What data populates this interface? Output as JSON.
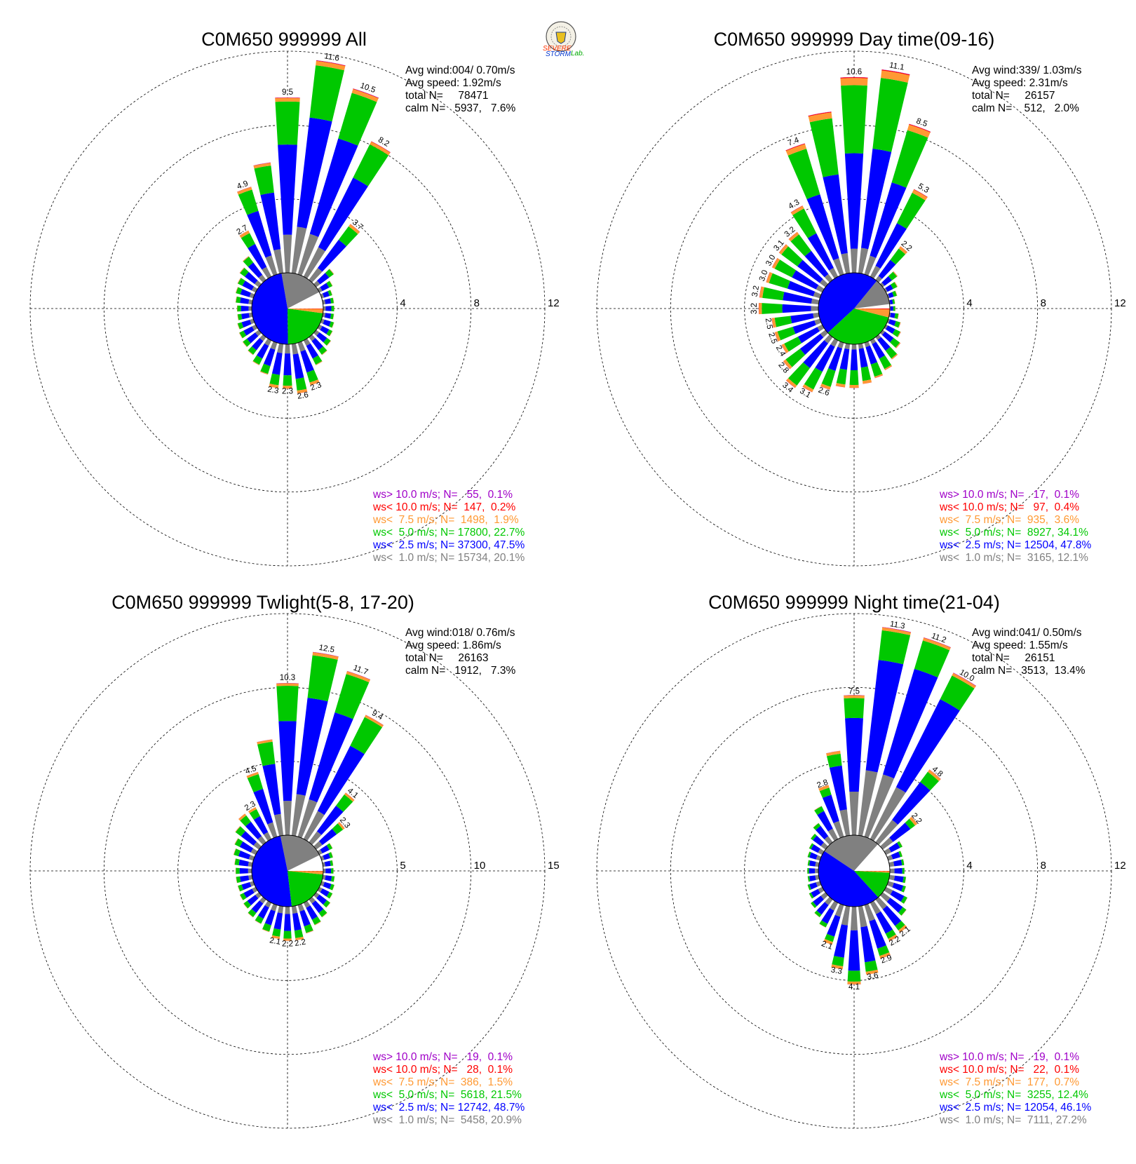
{
  "logo": {
    "word1": "SEVERE",
    "word2": "STORM",
    "word3": "Lab."
  },
  "colors": {
    "ws_gt_10": "#a000c8",
    "ws_lt_10": "#ff0000",
    "ws_lt_7_5": "#ff9933",
    "ws_lt_5": "#00c800",
    "ws_lt_2_5": "#0000ff",
    "ws_lt_1": "#808080",
    "calm": "#ffffff"
  },
  "chart_data": [
    {
      "type": "wind-rose",
      "title": "C0M650 999999 All",
      "stats": {
        "avg_wind": "Avg wind:004/ 0.70m/s",
        "avg_speed": "Avg speed: 1.92m/s",
        "total": "total N=     78471",
        "calm": "calm N=   5937,   7.6%"
      },
      "rings": [
        4,
        8,
        12
      ],
      "ring_labels": [
        "4",
        "8",
        "12"
      ],
      "pie_fractions": {
        "calm": 0.076,
        "ws_lt_1": 0.201,
        "ws_lt_2_5": 0.475,
        "ws_lt_5": 0.227,
        "ws_lt_7_5": 0.019,
        "ws_lt_10": 0.002
      },
      "directions_deg": [
        0,
        10,
        20,
        30,
        40,
        50,
        60,
        70,
        80,
        90,
        100,
        110,
        120,
        130,
        140,
        150,
        160,
        170,
        180,
        190,
        200,
        210,
        220,
        230,
        240,
        250,
        260,
        270,
        280,
        290,
        300,
        310,
        320,
        330,
        340,
        350
      ],
      "totals": [
        9.5,
        11.6,
        10.5,
        8.2,
        3.7,
        1.2,
        0.8,
        0.6,
        0.6,
        0.6,
        0.6,
        0.7,
        0.8,
        1.0,
        1.2,
        1.5,
        2.3,
        2.6,
        2.3,
        2.3,
        1.8,
        1.5,
        1.2,
        1.1,
        1.0,
        0.9,
        0.8,
        0.8,
        0.9,
        1.0,
        1.1,
        1.3,
        1.6,
        2.7,
        4.9,
        6.0
      ],
      "bar_labels": {
        "0": "9.5",
        "10": "11.6",
        "20": "10.5",
        "30": "8.2",
        "40": "3.7",
        "160": "2.3",
        "170": "2.6",
        "180": "2.3",
        "190": "2.3",
        "330": "2.7",
        "340": "4.9"
      },
      "legend": [
        {
          "key": "ws_gt_10",
          "text": "ws> 10.0 m/s; N=   55,  0.1%"
        },
        {
          "key": "ws_lt_10",
          "text": "ws< 10.0 m/s; N=  147,  0.2%"
        },
        {
          "key": "ws_lt_7_5",
          "text": "ws<  7.5 m/s; N=  1498,  1.9%"
        },
        {
          "key": "ws_lt_5",
          "text": "ws<  5.0 m/s; N= 17800, 22.7%"
        },
        {
          "key": "ws_lt_2_5",
          "text": "ws<  2.5 m/s; N= 37300, 47.5%"
        },
        {
          "key": "ws_lt_1",
          "text": "ws<  1.0 m/s; N= 15734, 20.1%"
        }
      ]
    },
    {
      "type": "wind-rose",
      "title": "C0M650 999999 Day time(09-16)",
      "stats": {
        "avg_wind": "Avg wind:339/ 1.03m/s",
        "avg_speed": "Avg speed: 2.31m/s",
        "total": "total N=     26157",
        "calm": "calm N=    512,   2.0%"
      },
      "rings": [
        4,
        8,
        12
      ],
      "ring_labels": [
        "4",
        "8",
        "12"
      ],
      "pie_fractions": {
        "calm": 0.02,
        "ws_lt_1": 0.121,
        "ws_lt_2_5": 0.478,
        "ws_lt_5": 0.341,
        "ws_lt_7_5": 0.036,
        "ws_lt_10": 0.004
      },
      "directions_deg": [
        0,
        10,
        20,
        30,
        40,
        50,
        60,
        70,
        80,
        90,
        100,
        110,
        120,
        130,
        140,
        150,
        160,
        170,
        180,
        190,
        200,
        210,
        220,
        230,
        240,
        250,
        260,
        270,
        280,
        290,
        300,
        310,
        320,
        330,
        340,
        350
      ],
      "totals": [
        10.6,
        11.1,
        8.5,
        5.3,
        2.2,
        1.0,
        0.7,
        0.5,
        0.3,
        0.3,
        0.5,
        0.7,
        0.9,
        1.2,
        1.5,
        1.8,
        2.0,
        2.1,
        2.3,
        2.3,
        2.6,
        3.1,
        3.4,
        2.8,
        2.4,
        2.5,
        2.5,
        3.2,
        3.2,
        3.0,
        3.0,
        3.1,
        3.2,
        4.3,
        7.4,
        8.8
      ],
      "bar_labels": {
        "0": "10.6",
        "10": "11.1",
        "20": "8.5",
        "30": "5.3",
        "40": "2.2",
        "200": "2.6",
        "210": "3.1",
        "220": "3.4",
        "230": "2.8",
        "240": "2.4",
        "250": "2.5",
        "260": "2.5",
        "270": "3.2",
        "280": "3.2",
        "290": "3.0",
        "300": "3.0",
        "310": "3.1",
        "320": "3.2",
        "330": "4.3",
        "340": "7.4"
      },
      "legend": [
        {
          "key": "ws_gt_10",
          "text": "ws> 10.0 m/s; N=   17,  0.1%"
        },
        {
          "key": "ws_lt_10",
          "text": "ws< 10.0 m/s; N=   97,  0.4%"
        },
        {
          "key": "ws_lt_7_5",
          "text": "ws<  7.5 m/s; N=  935,  3.6%"
        },
        {
          "key": "ws_lt_5",
          "text": "ws<  5.0 m/s; N=  8927, 34.1%"
        },
        {
          "key": "ws_lt_2_5",
          "text": "ws<  2.5 m/s; N= 12504, 47.8%"
        },
        {
          "key": "ws_lt_1",
          "text": "ws<  1.0 m/s; N=  3165, 12.1%"
        }
      ]
    },
    {
      "type": "wind-rose",
      "title": "C0M650 999999 Twlight(5-8, 17-20)",
      "stats": {
        "avg_wind": "Avg wind:018/ 0.76m/s",
        "avg_speed": "Avg speed: 1.86m/s",
        "total": "total N=     26163",
        "calm": "calm N=   1912,   7.3%"
      },
      "rings": [
        5,
        10,
        15
      ],
      "ring_labels": [
        "5",
        "10",
        "15"
      ],
      "pie_fractions": {
        "calm": 0.073,
        "ws_lt_1": 0.209,
        "ws_lt_2_5": 0.487,
        "ws_lt_5": 0.215,
        "ws_lt_7_5": 0.015,
        "ws_lt_10": 0.001
      },
      "directions_deg": [
        0,
        10,
        20,
        30,
        40,
        50,
        60,
        70,
        80,
        90,
        100,
        110,
        120,
        130,
        140,
        150,
        160,
        170,
        180,
        190,
        200,
        210,
        220,
        230,
        240,
        250,
        260,
        270,
        280,
        290,
        300,
        310,
        320,
        330,
        340,
        350
      ],
      "totals": [
        10.3,
        12.5,
        11.7,
        9.4,
        4.1,
        2.3,
        1.0,
        0.8,
        0.7,
        0.7,
        0.8,
        0.9,
        1.0,
        1.2,
        1.5,
        1.7,
        2.0,
        2.2,
        2.2,
        2.1,
        1.9,
        1.6,
        1.5,
        1.3,
        1.2,
        1.1,
        1.1,
        1.1,
        1.2,
        1.4,
        1.6,
        2.0,
        2.3,
        2.3,
        4.5,
        6.5
      ],
      "bar_labels": {
        "0": "10.3",
        "10": "12.5",
        "20": "11.7",
        "30": "9.4",
        "40": "4.1",
        "50": "2.3",
        "170": "2.2",
        "180": "2.2",
        "190": "2.1",
        "330": "2.3",
        "340": "4.5"
      },
      "legend": [
        {
          "key": "ws_gt_10",
          "text": "ws> 10.0 m/s; N=   19,  0.1%"
        },
        {
          "key": "ws_lt_10",
          "text": "ws< 10.0 m/s; N=   28,  0.1%"
        },
        {
          "key": "ws_lt_7_5",
          "text": "ws<  7.5 m/s; N=  386,  1.5%"
        },
        {
          "key": "ws_lt_5",
          "text": "ws<  5.0 m/s; N=  5618, 21.5%"
        },
        {
          "key": "ws_lt_2_5",
          "text": "ws<  2.5 m/s; N= 12742, 48.7%"
        },
        {
          "key": "ws_lt_1",
          "text": "ws<  1.0 m/s; N=  5458, 20.9%"
        }
      ]
    },
    {
      "type": "wind-rose",
      "title": "C0M650 999999 Night time(21-04)",
      "stats": {
        "avg_wind": "Avg wind:041/ 0.50m/s",
        "avg_speed": "Avg speed: 1.55m/s",
        "total": "total N=     26151",
        "calm": "calm N=   3513,  13.4%"
      },
      "rings": [
        4,
        8,
        12
      ],
      "ring_labels": [
        "4",
        "8",
        "12"
      ],
      "pie_fractions": {
        "calm": 0.134,
        "ws_lt_1": 0.272,
        "ws_lt_2_5": 0.461,
        "ws_lt_5": 0.124,
        "ws_lt_7_5": 0.007,
        "ws_lt_10": 0.001
      },
      "directions_deg": [
        0,
        10,
        20,
        30,
        40,
        50,
        60,
        70,
        80,
        90,
        100,
        110,
        120,
        130,
        140,
        150,
        160,
        170,
        180,
        190,
        200,
        210,
        220,
        230,
        240,
        250,
        260,
        270,
        280,
        290,
        300,
        310,
        320,
        330,
        340,
        350
      ],
      "totals": [
        7.5,
        11.3,
        11.2,
        10.0,
        4.8,
        2.2,
        1.0,
        0.8,
        0.8,
        0.8,
        0.9,
        1.0,
        1.3,
        1.6,
        2.1,
        2.2,
        2.9,
        3.6,
        4.1,
        3.3,
        2.1,
        1.5,
        1.2,
        1.0,
        0.8,
        0.7,
        0.6,
        0.6,
        0.6,
        0.7,
        0.8,
        1.0,
        1.3,
        2.0,
        2.8,
        4.5
      ],
      "bar_labels": {
        "0": "7.5",
        "10": "11.3",
        "20": "11.2",
        "30": "10.0",
        "40": "4.8",
        "50": "2.2",
        "140": "2.1",
        "150": "2.2",
        "160": "2.9",
        "170": "3.6",
        "180": "4.1",
        "190": "3.3",
        "200": "2.1",
        "340": "2.8"
      },
      "legend": [
        {
          "key": "ws_gt_10",
          "text": "ws> 10.0 m/s; N=   19,  0.1%"
        },
        {
          "key": "ws_lt_10",
          "text": "ws< 10.0 m/s; N=   22,  0.1%"
        },
        {
          "key": "ws_lt_7_5",
          "text": "ws<  7.5 m/s; N=  177,  0.7%"
        },
        {
          "key": "ws_lt_5",
          "text": "ws<  5.0 m/s; N=  3255, 12.4%"
        },
        {
          "key": "ws_lt_2_5",
          "text": "ws<  2.5 m/s; N= 12054, 46.1%"
        },
        {
          "key": "ws_lt_1",
          "text": "ws<  1.0 m/s; N=  7111, 27.2%"
        }
      ]
    }
  ]
}
